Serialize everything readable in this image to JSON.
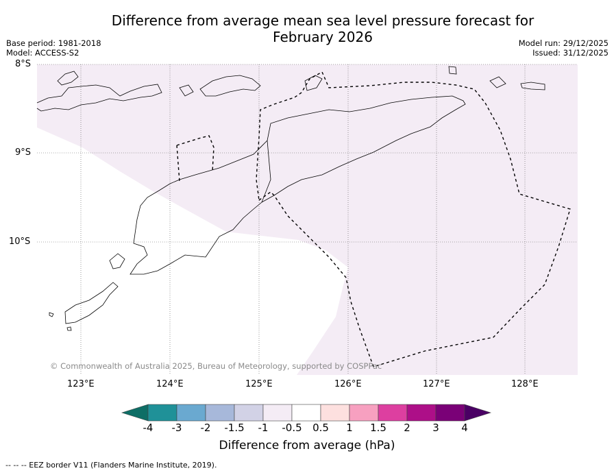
{
  "title": {
    "line1": "Difference from average mean sea level pressure forecast for",
    "line2": "February 2026"
  },
  "meta": {
    "base_period": "Base period: 1981-2018",
    "model": "Model: ACCESS-S2",
    "model_run": "Model run: 29/12/2025",
    "issued": "Issued: 31/12/2025"
  },
  "map": {
    "lat_labels": [
      "8°S",
      "9°S",
      "10°S"
    ],
    "lon_labels": [
      "123°E",
      "124°E",
      "125°E",
      "126°E",
      "127°E",
      "128°E"
    ],
    "copyright": "© Commonwealth of Australia 2025, Bureau of Meteorology, supported by COSPPac",
    "fill_color": "#f4ecf5",
    "coast_color": "#000000"
  },
  "colorbar": {
    "ticks": [
      "-4",
      "-3",
      "-2",
      "-1.5",
      "-1",
      "-0.5",
      "0.5",
      "1",
      "1.5",
      "2",
      "3",
      "4"
    ],
    "colors": [
      "#0e6e66",
      "#1f9198",
      "#6aa9d0",
      "#a7b8da",
      "#d2d2e6",
      "#f4ecf5",
      "#ffffff",
      "#fde0df",
      "#f7a0c0",
      "#dd3fa0",
      "#ad0f88",
      "#7a0177",
      "#4a0064"
    ],
    "label": "Difference from average (hPa)"
  },
  "footnote": "--  --  -- EEZ border V11 (Flanders Marine Institute, 2019)."
}
